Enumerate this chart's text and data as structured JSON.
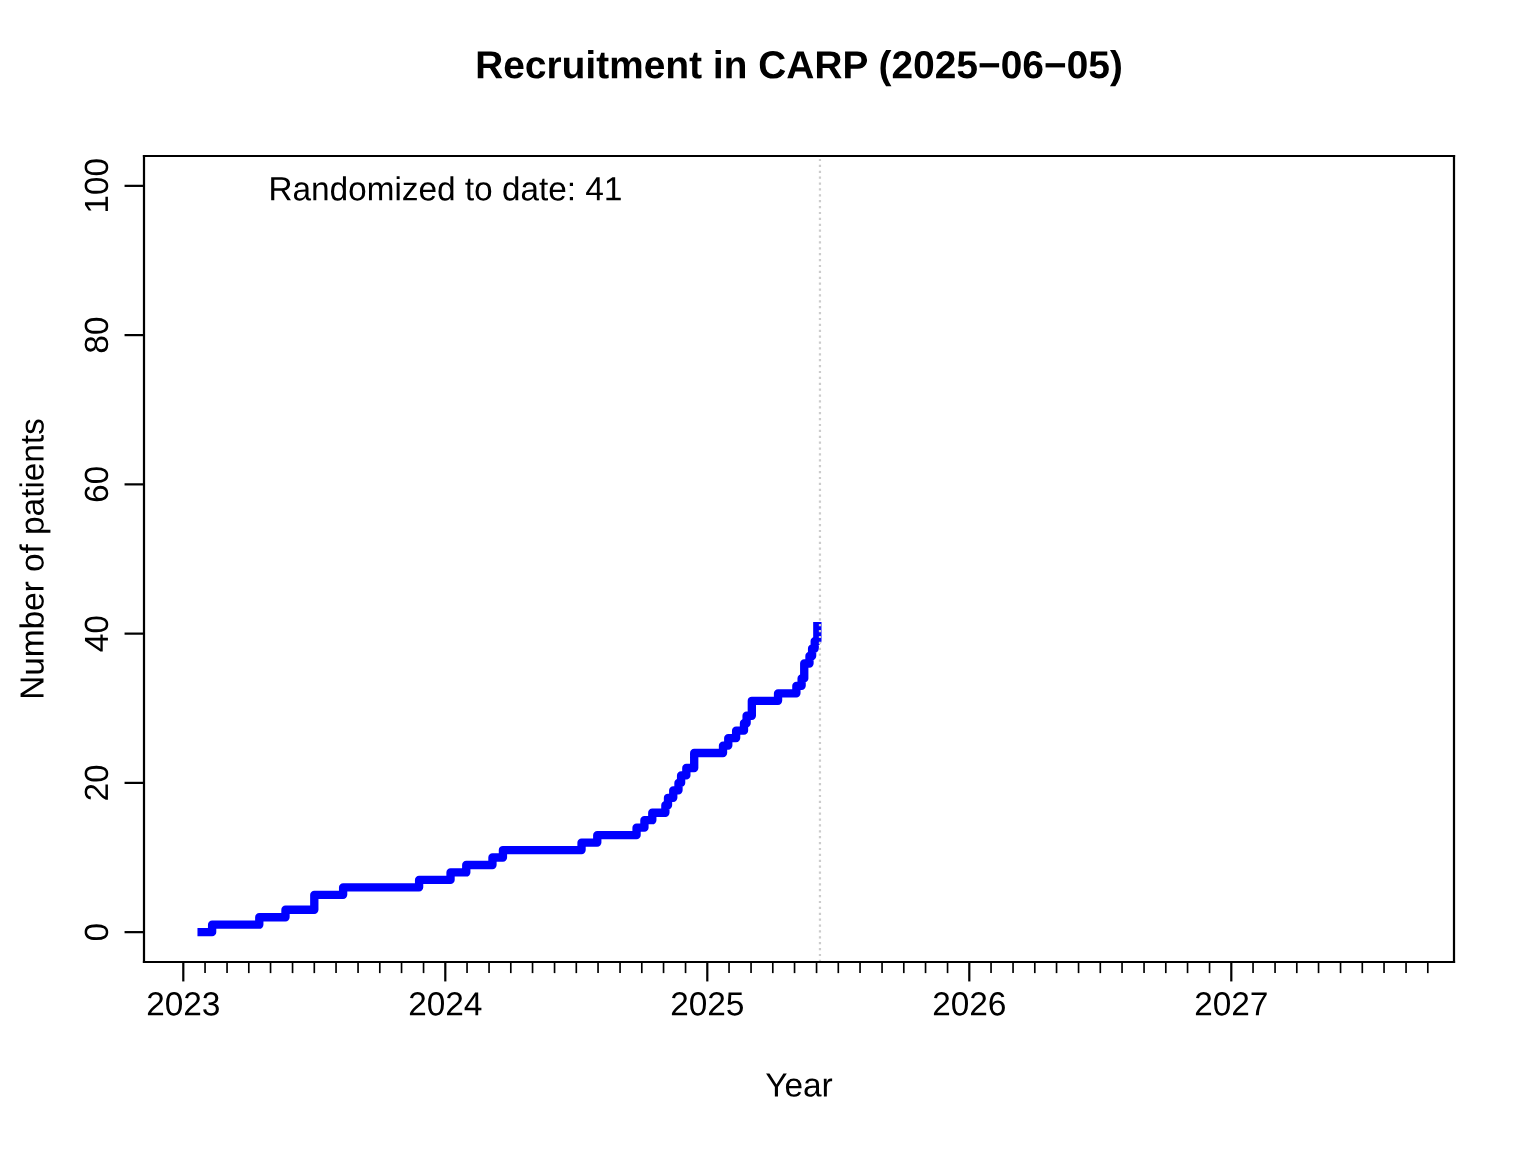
{
  "chart_data": {
    "type": "step",
    "title": "Recruitment in CARP (2025−06−05)",
    "xlabel": "Year",
    "ylabel": "Number of patients",
    "annotations": [
      "Randomized to date: 41"
    ],
    "x": [
      2023.07,
      2023.11,
      2023.29,
      2023.39,
      2023.5,
      2023.61,
      2023.9,
      2024.02,
      2024.08,
      2024.18,
      2024.22,
      2024.52,
      2024.58,
      2024.73,
      2024.76,
      2024.79,
      2024.84,
      2024.85,
      2024.87,
      2024.89,
      2024.9,
      2024.92,
      2024.95,
      2025.06,
      2025.08,
      2025.11,
      2025.14,
      2025.15,
      2025.17,
      2025.27,
      2025.34,
      2025.36,
      2025.37,
      2025.39,
      2025.4,
      2025.41,
      2025.42
    ],
    "series": [
      {
        "color": "#0000ff",
        "values": [
          0,
          1,
          2,
          3,
          5,
          6,
          7,
          8,
          9,
          10,
          11,
          12,
          13,
          14,
          15,
          16,
          17,
          18,
          19,
          20,
          21,
          22,
          24,
          25,
          26,
          27,
          28,
          29,
          31,
          32,
          33,
          34,
          36,
          37,
          38,
          39,
          41
        ]
      }
    ],
    "xlim": [
      2022.85,
      2027.85
    ],
    "ylim": [
      -4,
      104
    ],
    "xticks": [
      2023,
      2024,
      2025,
      2026,
      2027,
      {
        "value": 2023.083,
        "label": null
      },
      {
        "value": 2023.167,
        "label": null
      },
      {
        "value": 2023.25,
        "label": null
      },
      {
        "value": 2023.333,
        "label": null
      },
      {
        "value": 2023.417,
        "label": null
      },
      {
        "value": 2023.5,
        "label": null
      },
      {
        "value": 2023.583,
        "label": null
      },
      {
        "value": 2023.667,
        "label": null
      },
      {
        "value": 2023.75,
        "label": null
      },
      {
        "value": 2023.833,
        "label": null
      },
      {
        "value": 2023.917,
        "label": null
      },
      {
        "value": 2024.083,
        "label": null
      },
      {
        "value": 2024.167,
        "label": null
      },
      {
        "value": 2024.25,
        "label": null
      },
      {
        "value": 2024.333,
        "label": null
      },
      {
        "value": 2024.417,
        "label": null
      },
      {
        "value": 2024.5,
        "label": null
      },
      {
        "value": 2024.583,
        "label": null
      },
      {
        "value": 2024.667,
        "label": null
      },
      {
        "value": 2024.75,
        "label": null
      },
      {
        "value": 2024.833,
        "label": null
      },
      {
        "value": 2024.917,
        "label": null
      },
      {
        "value": 2025.083,
        "label": null
      },
      {
        "value": 2025.167,
        "label": null
      },
      {
        "value": 2025.25,
        "label": null
      },
      {
        "value": 2025.333,
        "label": null
      },
      {
        "value": 2025.417,
        "label": null
      },
      {
        "value": 2025.5,
        "label": null
      },
      {
        "value": 2025.583,
        "label": null
      },
      {
        "value": 2025.667,
        "label": null
      },
      {
        "value": 2025.75,
        "label": null
      },
      {
        "value": 2025.833,
        "label": null
      },
      {
        "value": 2025.917,
        "label": null
      },
      {
        "value": 2026.083,
        "label": null
      },
      {
        "value": 2026.167,
        "label": null
      },
      {
        "value": 2026.25,
        "label": null
      },
      {
        "value": 2026.333,
        "label": null
      },
      {
        "value": 2026.417,
        "label": null
      },
      {
        "value": 2026.5,
        "label": null
      },
      {
        "value": 2026.583,
        "label": null
      },
      {
        "value": 2026.667,
        "label": null
      },
      {
        "value": 2026.75,
        "label": null
      },
      {
        "value": 2026.833,
        "label": null
      },
      {
        "value": 2026.917,
        "label": null
      },
      {
        "value": 2027.083,
        "label": null
      },
      {
        "value": 2027.167,
        "label": null
      },
      {
        "value": 2027.25,
        "label": null
      },
      {
        "value": 2027.333,
        "label": null
      },
      {
        "value": 2027.417,
        "label": null
      },
      {
        "value": 2027.5,
        "label": null
      },
      {
        "value": 2027.583,
        "label": null
      },
      {
        "value": 2027.667,
        "label": null
      },
      {
        "value": 2027.75,
        "label": null
      }
    ],
    "yticks": [
      0,
      20,
      40,
      60,
      80,
      100
    ],
    "ref_lines": [
      {
        "axis": "x",
        "value": 2025.43,
        "color": "#cccccc",
        "line_style": "dotted"
      }
    ],
    "grid": false,
    "legend": false
  }
}
